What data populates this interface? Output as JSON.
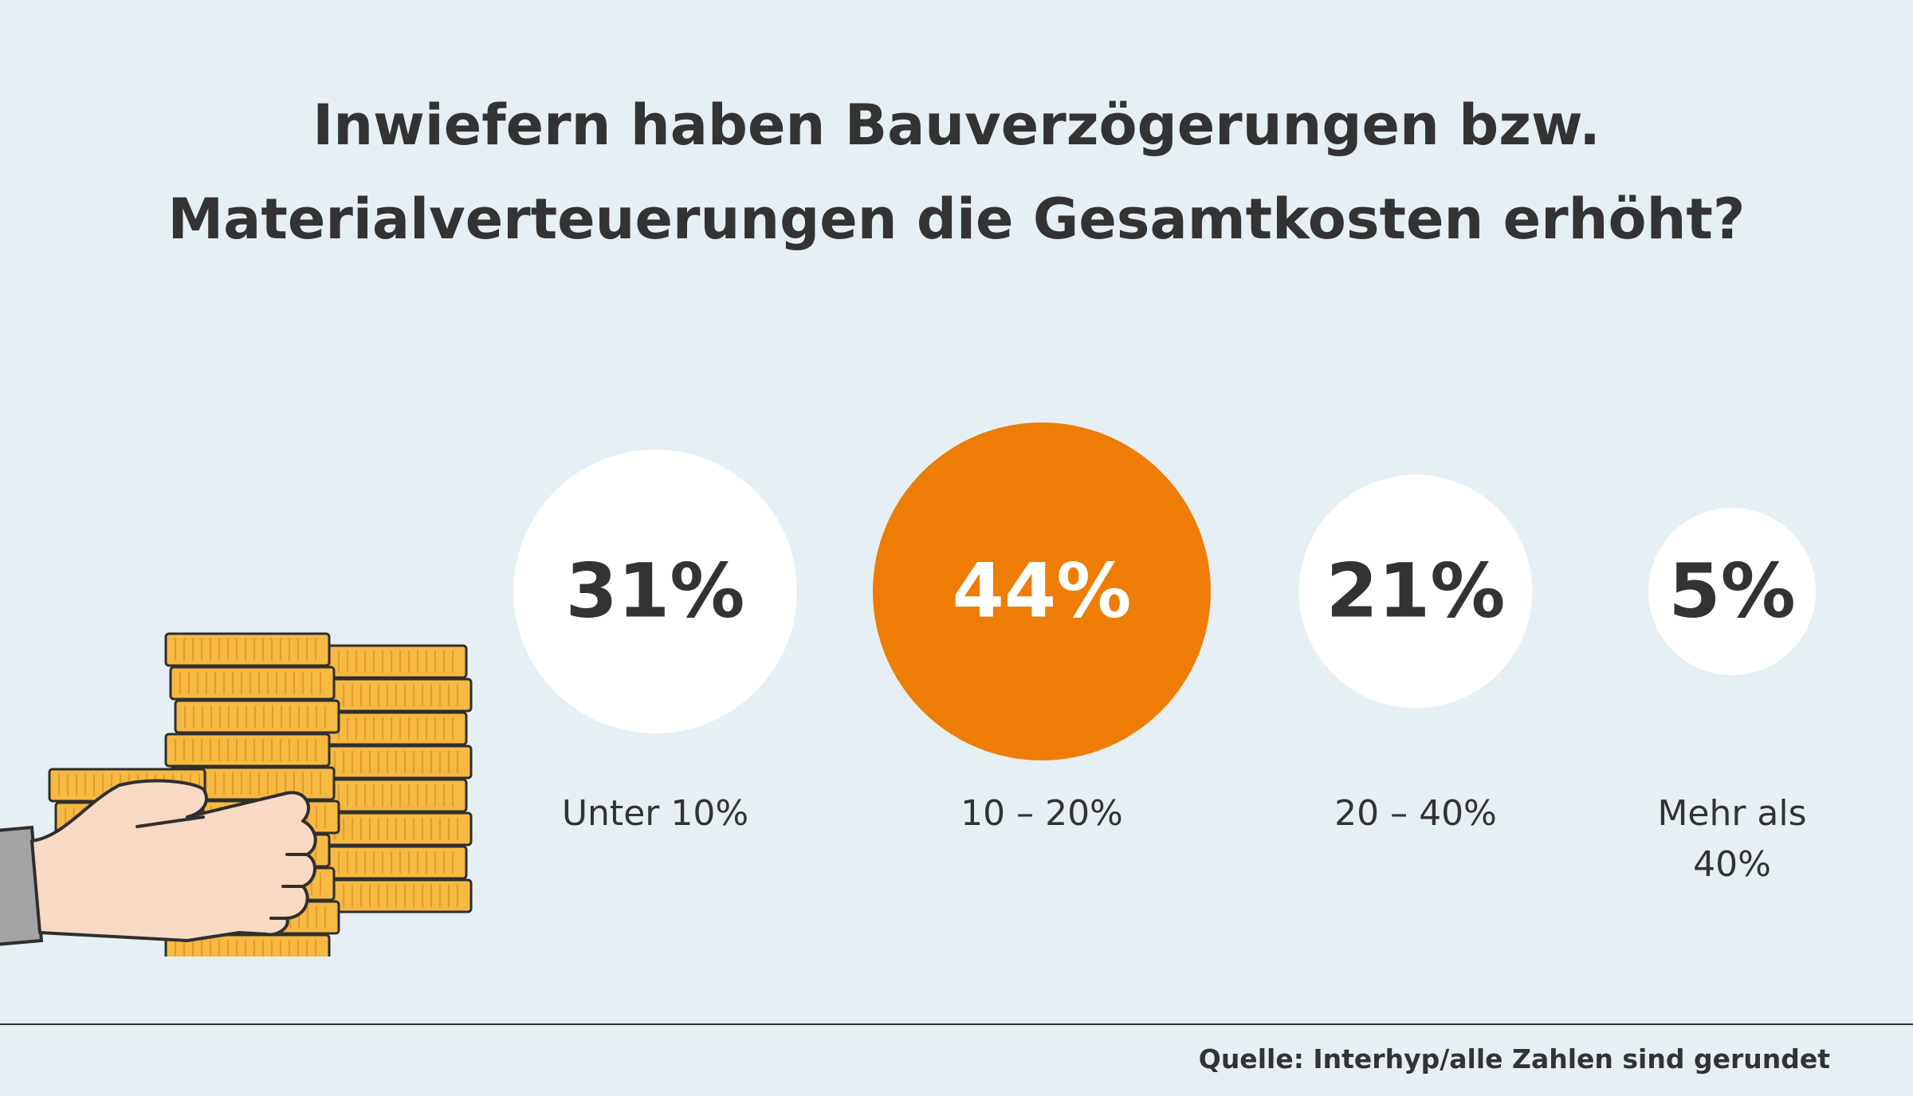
{
  "header": {
    "title_line1": "Inwiefern haben Bauverzögerungen bzw.",
    "title_line2": "Materialverteuerungen die Gesamtkosten erhöht?"
  },
  "chart_data": {
    "type": "bubble",
    "title": "Inwiefern haben Bauverzögerungen bzw. Materialverteuerungen die Gesamtkosten erhöht?",
    "categories": [
      "Unter 10%",
      "10 – 20%",
      "20 – 40%",
      "Mehr als 40%"
    ],
    "values": [
      31,
      44,
      21,
      5
    ],
    "value_labels": [
      "31%",
      "44%",
      "21%",
      "5%"
    ],
    "unit": "%",
    "highlight_index": 1,
    "colors": {
      "default_fill": "#ffffff",
      "highlight_fill": "#ee7d05",
      "default_text": "#333333",
      "highlight_text": "#ffffff"
    }
  },
  "illustration": {
    "icon": "hand-with-coins-icon",
    "coin_color": "#f6b942",
    "coin_shadow": "#e59b2b",
    "hand_color": "#f8d9c4",
    "sleeve_color": "#a4a4a4",
    "outline_color": "#2f2f2f"
  },
  "footer": {
    "source": "Quelle: Interhyp/alle Zahlen sind gerundet"
  }
}
